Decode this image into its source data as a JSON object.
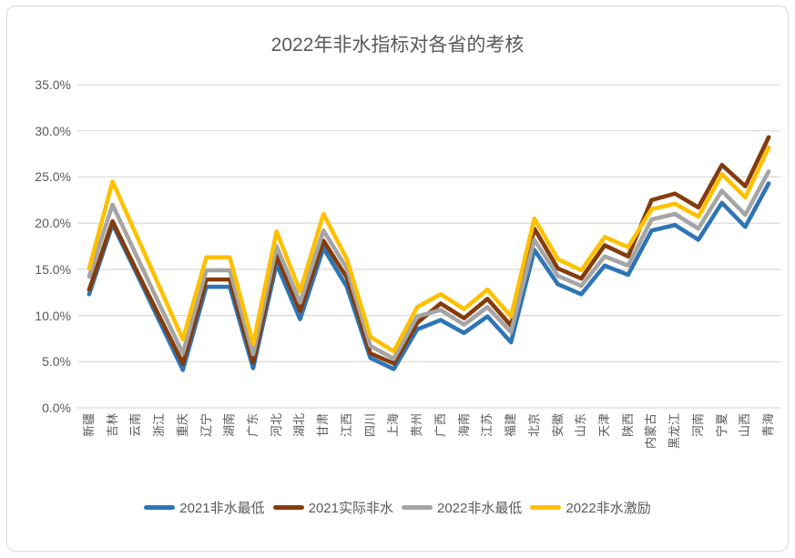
{
  "chart_data": {
    "type": "line",
    "title": "2022年非水指标对各省的考核",
    "categories": [
      "新疆",
      "吉林",
      "云南",
      "浙江",
      "重庆",
      "辽宁",
      "湖南",
      "广东",
      "河北",
      "湖北",
      "甘肃",
      "江西",
      "四川",
      "上海",
      "贵州",
      "广西",
      "海南",
      "江苏",
      "福建",
      "北京",
      "安徽",
      "山东",
      "天津",
      "陕西",
      "内蒙古",
      "黑龙江",
      "河南",
      "宁夏",
      "山西",
      "青海"
    ],
    "series": [
      {
        "name": "2021非水最低",
        "color": "#2E75B6",
        "values": [
          12.3,
          19.9,
          14.7,
          9.4,
          4.1,
          13.1,
          13.1,
          4.3,
          15.6,
          9.6,
          17.3,
          13.1,
          5.4,
          4.2,
          8.5,
          9.5,
          8.1,
          9.9,
          7.1,
          17.1,
          13.4,
          12.3,
          15.4,
          14.4,
          19.2,
          19.8,
          18.2,
          22.2,
          19.6,
          24.3
        ]
      },
      {
        "name": "2021实际非水",
        "color": "#843C0C",
        "values": [
          12.8,
          20.2,
          15.0,
          9.9,
          4.8,
          13.9,
          13.9,
          4.9,
          16.5,
          10.5,
          18.1,
          14.1,
          5.9,
          4.8,
          9.2,
          11.3,
          9.7,
          11.8,
          8.9,
          19.4,
          15.1,
          14.0,
          17.6,
          16.4,
          22.5,
          23.2,
          21.7,
          26.3,
          24.0,
          29.3
        ]
      },
      {
        "name": "2022非水最低",
        "color": "#A5A5A5",
        "values": [
          14.2,
          22.0,
          16.6,
          11.2,
          5.9,
          14.9,
          14.9,
          5.8,
          17.5,
          11.4,
          19.2,
          15.1,
          6.7,
          5.3,
          9.9,
          10.6,
          9.0,
          10.9,
          8.2,
          18.2,
          14.3,
          13.2,
          16.4,
          15.4,
          20.4,
          21.0,
          19.4,
          23.5,
          20.9,
          25.6
        ]
      },
      {
        "name": "2022非水激励",
        "color": "#FFC000",
        "values": [
          15.1,
          24.5,
          18.8,
          13.1,
          7.4,
          16.3,
          16.3,
          6.9,
          19.1,
          12.6,
          21.0,
          16.1,
          7.7,
          6.1,
          10.9,
          12.3,
          10.7,
          12.8,
          9.9,
          20.5,
          16.1,
          14.9,
          18.5,
          17.4,
          21.5,
          22.1,
          20.7,
          25.3,
          22.8,
          28.2
        ]
      }
    ],
    "y_ticks": [
      "35.0%",
      "30.0%",
      "25.0%",
      "20.0%",
      "15.0%",
      "10.0%",
      "5.0%",
      "0.0%"
    ],
    "ylim": [
      0,
      35
    ],
    "y_tick_step": 5,
    "grid": true,
    "legend_position": "bottom"
  },
  "colors": {
    "gridline": "#D9D9D9",
    "border": "#D9D9D9",
    "text": "#595959",
    "background": "#FFFFFF"
  }
}
